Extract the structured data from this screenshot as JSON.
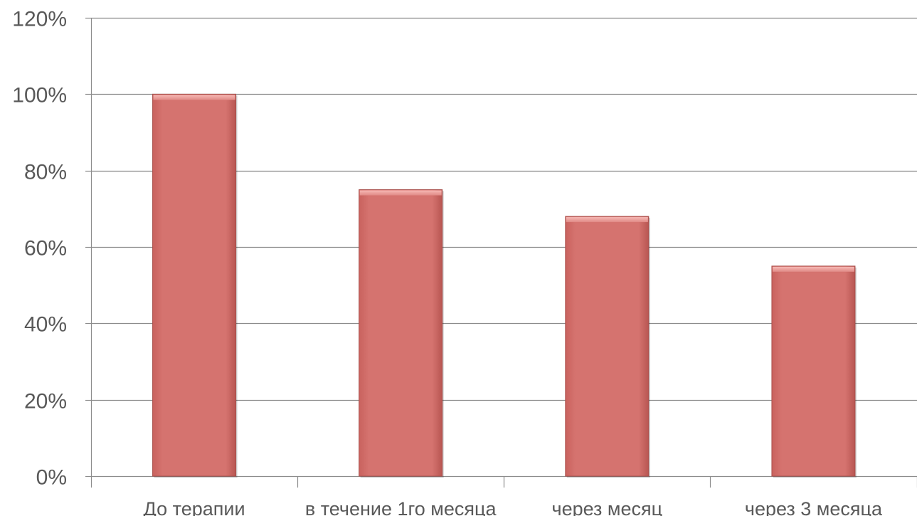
{
  "chart_data": {
    "type": "bar",
    "categories": [
      "До терапии",
      "в течение 1го месяца",
      "через месяц",
      "через 3 месяца"
    ],
    "values": [
      100,
      75,
      68,
      55
    ],
    "unit": "%",
    "ylim": [
      0,
      120
    ],
    "y_ticks": [
      0,
      20,
      40,
      60,
      80,
      100,
      120
    ],
    "y_tick_labels": [
      "0%",
      "20%",
      "40%",
      "60%",
      "80%",
      "100%",
      "120%"
    ],
    "grid": true,
    "legend": "none",
    "bar_color": "#d5736f",
    "bar_top_color": "#f0a6a2",
    "title": "",
    "xlabel": "",
    "ylabel": ""
  }
}
